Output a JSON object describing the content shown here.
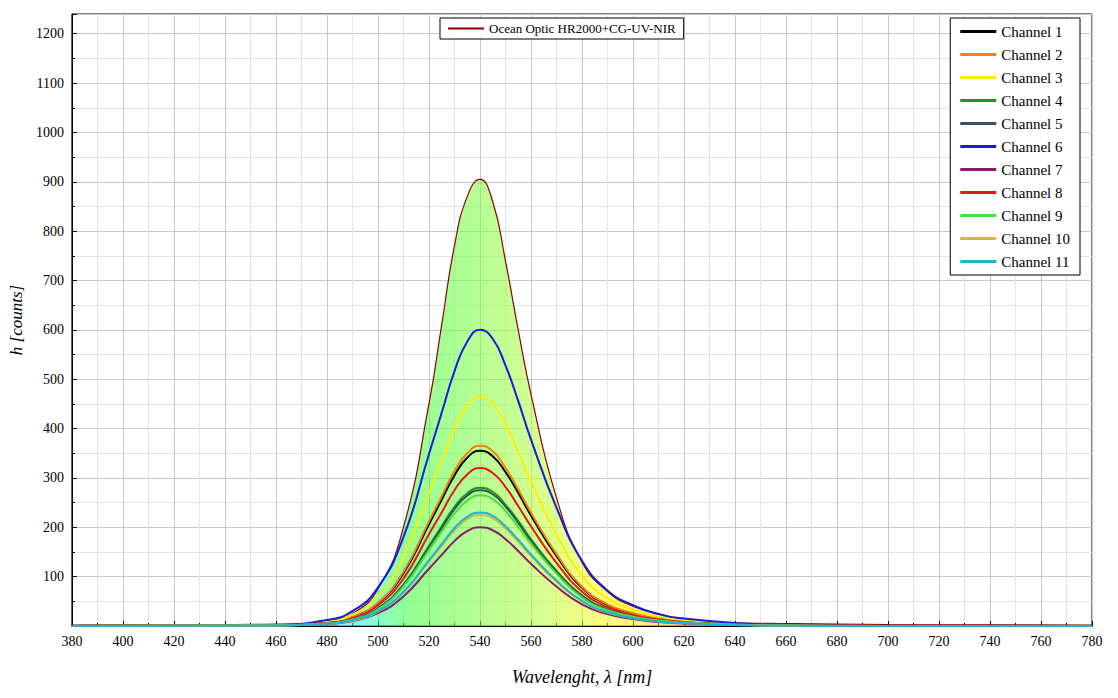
{
  "chart_data": {
    "type": "line",
    "x_label": "Wavelenght, λ [nm]",
    "y_label": "h [counts]",
    "x": [
      380,
      460,
      480,
      490,
      500,
      510,
      520,
      525,
      530,
      535,
      540,
      545,
      550,
      555,
      560,
      570,
      580,
      590,
      600,
      610,
      620,
      640,
      660,
      700,
      780
    ],
    "xlim": [
      380,
      780
    ],
    "xticks": [
      380,
      400,
      420,
      440,
      460,
      480,
      500,
      520,
      540,
      560,
      580,
      600,
      620,
      640,
      660,
      680,
      700,
      720,
      740,
      760,
      780
    ],
    "ylim": [
      0,
      1240
    ],
    "yticks": [
      100,
      200,
      300,
      400,
      500,
      600,
      700,
      800,
      900,
      1000,
      1100,
      1200
    ],
    "grid": true,
    "legend": "upper right",
    "series": [
      {
        "name": "Ocean Optic HR2000+CG-UV-NIR",
        "color": "#8b0000",
        "type": "area",
        "values": [
          2,
          3,
          10,
          25,
          75,
          200,
          450,
          610,
          770,
          870,
          905,
          860,
          740,
          600,
          470,
          260,
          130,
          70,
          40,
          25,
          12,
          6,
          5,
          3,
          2
        ]
      },
      {
        "name": "Channel 1",
        "color": "#000000",
        "type": "line",
        "values": [
          0,
          2,
          7,
          18,
          46,
          107,
          206,
          256,
          305,
          341,
          355,
          344,
          312,
          270,
          224,
          142,
          78,
          43,
          25,
          14,
          9,
          4,
          2,
          0,
          0
        ]
      },
      {
        "name": "Channel 2",
        "color": "#f28500",
        "type": "line",
        "values": [
          0,
          2,
          7,
          18,
          47,
          110,
          212,
          263,
          314,
          350,
          365,
          354,
          321,
          277,
          230,
          146,
          80,
          44,
          26,
          15,
          9,
          4,
          2,
          0,
          0
        ]
      },
      {
        "name": "Channel 3",
        "color": "#ffee00",
        "type": "line",
        "values": [
          0,
          2,
          9,
          23,
          60,
          140,
          270,
          335,
          400,
          446,
          465,
          451,
          409,
          353,
          293,
          186,
          102,
          56,
          33,
          19,
          12,
          5,
          2,
          0,
          0
        ]
      },
      {
        "name": "Channel 4",
        "color": "#1a9a1a",
        "type": "line",
        "values": [
          0,
          1,
          6,
          14,
          36,
          84,
          162,
          202,
          241,
          269,
          280,
          272,
          246,
          213,
          176,
          112,
          62,
          34,
          20,
          11,
          7,
          3,
          1,
          0,
          0
        ]
      },
      {
        "name": "Channel 5",
        "color": "#3d4f5a",
        "type": "line",
        "values": [
          0,
          1,
          6,
          14,
          36,
          83,
          160,
          198,
          237,
          264,
          275,
          267,
          242,
          209,
          173,
          110,
          61,
          33,
          19,
          11,
          7,
          3,
          1,
          0,
          0
        ]
      },
      {
        "name": "Channel 6",
        "color": "#1a1adb",
        "type": "line",
        "values": [
          0,
          3,
          12,
          30,
          78,
          180,
          348,
          432,
          516,
          576,
          600,
          582,
          528,
          456,
          378,
          240,
          132,
          72,
          42,
          24,
          15,
          6,
          3,
          0,
          0
        ]
      },
      {
        "name": "Channel 7",
        "color": "#8b1a6b",
        "type": "line",
        "values": [
          0,
          1,
          4,
          10,
          26,
          60,
          116,
          144,
          172,
          192,
          200,
          194,
          176,
          152,
          126,
          80,
          44,
          24,
          14,
          8,
          5,
          2,
          1,
          0,
          0
        ]
      },
      {
        "name": "Channel 8",
        "color": "#e8141e",
        "type": "line",
        "values": [
          0,
          2,
          6,
          16,
          42,
          96,
          186,
          230,
          275,
          307,
          320,
          310,
          282,
          243,
          202,
          128,
          70,
          38,
          22,
          13,
          8,
          3,
          2,
          0,
          0
        ]
      },
      {
        "name": "Channel 9",
        "color": "#3de63d",
        "type": "line",
        "values": [
          0,
          1,
          5,
          13,
          34,
          80,
          154,
          191,
          228,
          254,
          265,
          257,
          233,
          201,
          167,
          106,
          58,
          32,
          19,
          11,
          7,
          3,
          1,
          0,
          0
        ]
      },
      {
        "name": "Channel 10",
        "color": "#d4b83a",
        "type": "line",
        "values": [
          0,
          1,
          5,
          11,
          29,
          68,
          131,
          162,
          194,
          216,
          225,
          218,
          198,
          171,
          142,
          90,
          50,
          27,
          16,
          9,
          6,
          2,
          1,
          0,
          0
        ]
      },
      {
        "name": "Channel 11",
        "color": "#1ab4d4",
        "type": "line",
        "values": [
          0,
          1,
          5,
          12,
          30,
          69,
          133,
          166,
          198,
          221,
          230,
          223,
          202,
          175,
          145,
          92,
          51,
          28,
          16,
          9,
          6,
          2,
          1,
          0,
          0
        ]
      }
    ]
  }
}
